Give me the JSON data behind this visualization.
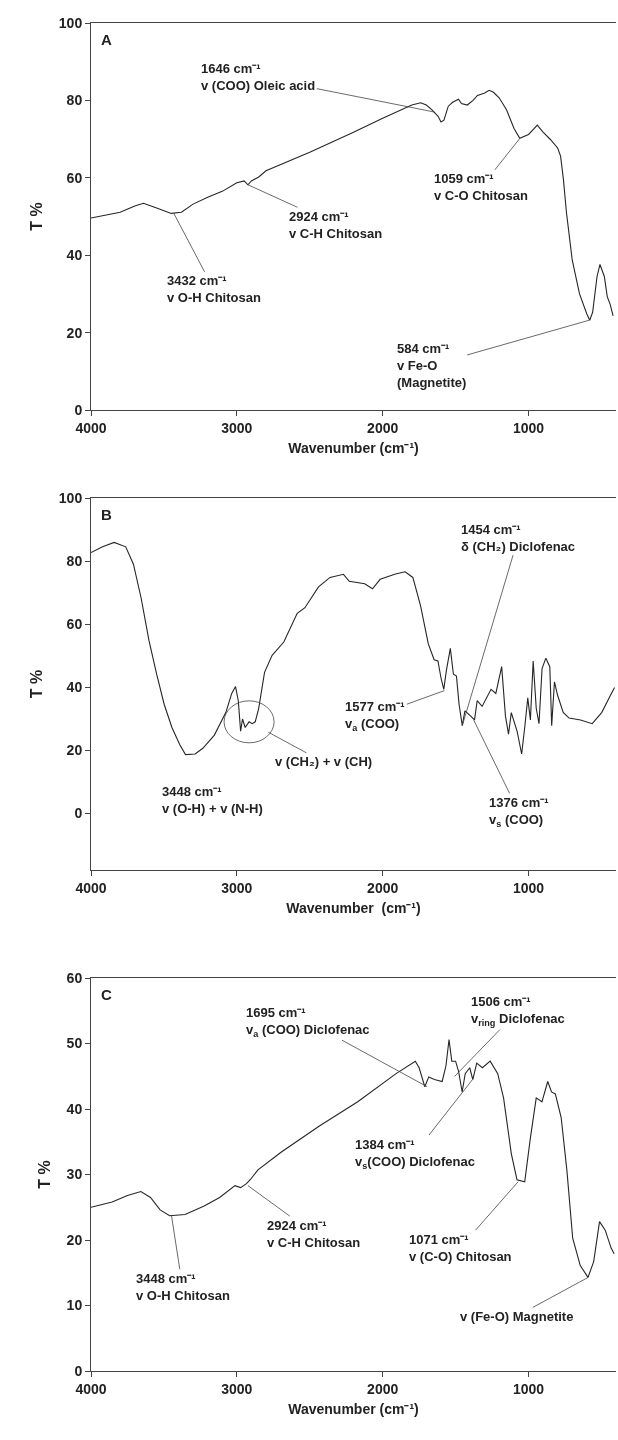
{
  "chart_data": [
    {
      "type": "line",
      "xlabel": "Wavenumber (cm⁻¹)",
      "ylabel": "T %",
      "color": "#262626",
      "xlim": [
        4000,
        400
      ],
      "xticks": [
        4000,
        3000,
        2000,
        1000
      ],
      "ylim": [
        0,
        100
      ],
      "yticks": [
        0,
        20,
        40,
        60,
        80,
        100
      ],
      "x": [
        4000,
        3800,
        3700,
        3640,
        3550,
        3450,
        3380,
        3300,
        3200,
        3100,
        3000,
        2950,
        2924,
        2900,
        2850,
        2800,
        2500,
        2200,
        2000,
        1800,
        1740,
        1700,
        1660,
        1620,
        1600,
        1580,
        1550,
        1520,
        1480,
        1460,
        1420,
        1380,
        1350,
        1300,
        1270,
        1240,
        1200,
        1150,
        1100,
        1060,
        1000,
        960,
        940,
        900,
        850,
        800,
        780,
        760,
        740,
        700,
        650,
        600,
        580,
        560,
        530,
        510,
        480,
        460,
        440,
        420
      ],
      "values": [
        49.6,
        51.1,
        52.7,
        53.4,
        52.2,
        50.8,
        51.1,
        53.2,
        55.0,
        56.5,
        58.7,
        59.2,
        58.2,
        59.2,
        60.2,
        61.8,
        66.6,
        71.8,
        75.4,
        78.8,
        79.4,
        78.8,
        77.5,
        75.9,
        74.4,
        74.9,
        78.5,
        79.5,
        80.3,
        79.2,
        78.8,
        80.0,
        81.3,
        81.9,
        82.6,
        82.1,
        80.6,
        77.5,
        72.8,
        70.2,
        71.2,
        72.8,
        73.6,
        71.8,
        69.9,
        67.7,
        65.6,
        59.4,
        51.1,
        38.7,
        30.0,
        24.8,
        23.2,
        25.3,
        34.5,
        37.6,
        34.5,
        29.3,
        27.3,
        24.3
      ],
      "annotations": [
        "A",
        {
          "text": "1646 cm⁻¹\nv (COO) Oleic acid",
          "x": 1646,
          "y": 77
        },
        {
          "text": "2924 cm⁻¹\nv C-H Chitosan",
          "x": 2924,
          "y": 58.2
        },
        {
          "text": "3432 cm⁻¹\nv O-H Chitosan",
          "x": 3432,
          "y": 50.8
        },
        {
          "text": "1059 cm⁻¹\nv C-O Chitosan",
          "x": 1059,
          "y": 70.2
        },
        {
          "text": "584 cm⁻¹\nv Fe-O\n(Magnetite)",
          "x": 584,
          "y": 23.2
        }
      ]
    },
    {
      "type": "line",
      "xlabel": "Wavenumber  (cm⁻¹)",
      "ylabel": "T %",
      "color": "#262626",
      "xlim": [
        4000,
        400
      ],
      "xticks": [
        4000,
        3000,
        2000,
        1000
      ],
      "ylim": [
        -18,
        100
      ],
      "yticks": [
        0,
        20,
        40,
        60,
        80,
        100
      ],
      "x": [
        4000,
        3921,
        3841,
        3762,
        3709,
        3656,
        3603,
        3550,
        3498,
        3445,
        3392,
        3352,
        3286,
        3233,
        3154,
        3075,
        3035,
        3009,
        2990,
        2974,
        2961,
        2943,
        2916,
        2895,
        2874,
        2850,
        2810,
        2758,
        2678,
        2586,
        2533,
        2440,
        2361,
        2269,
        2229,
        2123,
        2070,
        2017,
        1912,
        1846,
        1793,
        1740,
        1687,
        1647,
        1621,
        1600,
        1581,
        1563,
        1536,
        1515,
        1494,
        1476,
        1454,
        1436,
        1396,
        1370,
        1352,
        1318,
        1257,
        1224,
        1184,
        1158,
        1137,
        1118,
        1078,
        1047,
        1026,
        1005,
        987,
        968,
        947,
        928,
        907,
        881,
        854,
        841,
        822,
        801,
        762,
        722,
        643,
        563,
        497,
        444,
        410
      ],
      "values": [
        82.7,
        84.5,
        85.9,
        84.5,
        79.0,
        68.2,
        54.9,
        44.1,
        34.5,
        27.2,
        21.8,
        18.6,
        18.8,
        20.6,
        24.8,
        32.0,
        38.0,
        40.2,
        35.7,
        26.0,
        29.9,
        27.2,
        29.0,
        28.4,
        29.0,
        33.3,
        44.7,
        50.1,
        54.3,
        63.4,
        65.2,
        71.8,
        74.8,
        75.8,
        73.6,
        72.8,
        71.2,
        74.2,
        75.9,
        76.6,
        74.8,
        65.8,
        53.7,
        48.7,
        48.3,
        42.9,
        39.3,
        45.3,
        52.3,
        44.1,
        43.5,
        34.5,
        27.8,
        32.5,
        30.8,
        29.6,
        35.7,
        33.9,
        39.3,
        38.0,
        46.5,
        30.8,
        25.1,
        31.9,
        26.0,
        18.8,
        27.2,
        36.6,
        29.6,
        48.3,
        33.3,
        28.4,
        45.9,
        49.2,
        46.5,
        27.8,
        41.7,
        37.5,
        32.0,
        30.2,
        29.6,
        28.4,
        32.0,
        36.9,
        39.9
      ],
      "annotations": [
        "B",
        "3448 cm⁻¹\nv (O-H) + v (N-H)",
        {
          "text": "v (CH₂) + v (CH)",
          "x": 2916,
          "y": 29.0
        },
        {
          "text": "1577 cm⁻¹\nv$_{a}$ (COO)",
          "x": 1577,
          "y": 38.9
        },
        {
          "text": "1454 cm⁻¹\nδ (CH₂) Diclofenac",
          "x": 1454,
          "y": 27.8
        },
        {
          "text": "1376 cm⁻¹\nv$_{s}$ (COO)",
          "x": 1376,
          "y": 29.6
        }
      ]
    },
    {
      "type": "line",
      "xlabel": "Wavenumber (cm⁻¹)",
      "ylabel": "T %",
      "color": "#262626",
      "xlim": [
        4000,
        400
      ],
      "xticks": [
        4000,
        3000,
        2000,
        1000
      ],
      "ylim": [
        0,
        60
      ],
      "yticks": [
        0,
        10,
        20,
        30,
        40,
        50,
        60
      ],
      "x": [
        4000,
        3855,
        3750,
        3658,
        3592,
        3526,
        3461,
        3355,
        3224,
        3118,
        3013,
        2974,
        2934,
        2908,
        2855,
        2697,
        2434,
        2171,
        1908,
        1776,
        1750,
        1711,
        1684,
        1645,
        1592,
        1566,
        1545,
        1526,
        1500,
        1479,
        1455,
        1434,
        1403,
        1382,
        1355,
        1316,
        1263,
        1211,
        1171,
        1118,
        1079,
        1026,
        987,
        947,
        908,
        868,
        842,
        816,
        776,
        737,
        697,
        645,
        592,
        553,
        513,
        474,
        434,
        413
      ],
      "values": [
        25.0,
        25.8,
        26.8,
        27.4,
        26.5,
        24.6,
        23.7,
        23.9,
        25.2,
        26.5,
        28.3,
        28.0,
        28.6,
        29.2,
        30.7,
        33.4,
        37.4,
        41.1,
        45.4,
        47.3,
        46.3,
        43.4,
        44.9,
        44.5,
        44.2,
        46.6,
        50.6,
        47.3,
        47.3,
        45.7,
        42.6,
        45.4,
        46.3,
        44.5,
        47.0,
        46.3,
        47.3,
        45.4,
        41.7,
        33.2,
        29.2,
        28.9,
        35.6,
        41.7,
        41.1,
        44.2,
        42.6,
        42.3,
        38.7,
        30.7,
        20.3,
        16.1,
        14.3,
        16.7,
        22.8,
        21.5,
        18.8,
        17.9
      ],
      "annotations": [
        "C",
        {
          "text": "1695 cm⁻¹\nv$_{a}$ (COO) Diclofenac",
          "x": 1695,
          "y": 43.4
        },
        {
          "text": "1506 cm⁻¹\nv$_{ring}$ Diclofenac",
          "x": 1506,
          "y": 45
        },
        {
          "text": "1384 cm⁻¹\nv$_{s}$(COO) Diclofenac",
          "x": 1384,
          "y": 44.5
        },
        {
          "text": "1071 cm⁻¹\nv (C-O) Chitosan",
          "x": 1071,
          "y": 28.9
        },
        {
          "text": "2924 cm⁻¹\nv C-H Chitosan",
          "x": 2924,
          "y": 28.3
        },
        {
          "text": "3448 cm⁻¹\nv O-H Chitosan",
          "x": 3448,
          "y": 23.7
        },
        {
          "text": "v (Fe-O) Magnetite",
          "x": 590,
          "y": 14.3
        }
      ]
    }
  ]
}
